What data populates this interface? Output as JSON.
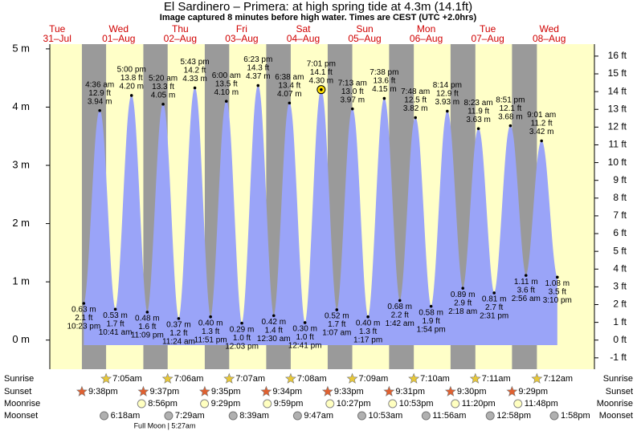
{
  "chart_data": {
    "type": "tide",
    "title": "El Sardinero – Primera: at high  spring tide at 4.3m (14.1ft)",
    "subtitle": "Image captured 8 minutes before high water. Times are CEST (UTC +2.0hrs)",
    "days": [
      "Tue",
      "Wed",
      "Thu",
      "Fri",
      "Sat",
      "Sun",
      "Mon",
      "Tue",
      "Wed"
    ],
    "dates": [
      "31–Jul",
      "01–Aug",
      "02–Aug",
      "03–Aug",
      "04–Aug",
      "05–Aug",
      "06–Aug",
      "07–Aug",
      "08–Aug"
    ],
    "color": "#9aa4f8",
    "events": {
      "times": [
        "10:23 pm",
        "4:36 am",
        "10:41 am",
        "5:00 pm",
        "11:09 pm",
        "5:20 am",
        "11:24 am",
        "5:43 pm",
        "11:51 pm",
        "6:00 am",
        "12:03 pm",
        "6:23 pm",
        "12:30 am",
        "6:38 am",
        "12:41 pm",
        "7:01 pm",
        "1:07 am",
        "7:13 am",
        "1:17 pm",
        "7:38 pm",
        "1:42 am",
        "7:48 am",
        "1:54 pm",
        "8:14 pm",
        "2:18 am",
        "8:23 am",
        "2:31 pm",
        "8:51 pm",
        "2:56 am",
        "9:01 am",
        "3:10 pm"
      ],
      "values": [
        0.63,
        3.94,
        0.53,
        4.2,
        0.48,
        4.05,
        0.37,
        4.33,
        0.4,
        4.1,
        0.29,
        4.37,
        0.42,
        4.07,
        0.3,
        4.3,
        0.52,
        3.97,
        0.4,
        4.15,
        0.68,
        3.82,
        0.58,
        3.93,
        0.89,
        3.63,
        0.81,
        3.68,
        1.11,
        3.42,
        1.08
      ],
      "value_labels": [
        "0.63 m",
        "3.94 m",
        "0.53 m",
        "4.20 m",
        "0.48 m",
        "4.05 m",
        "0.37 m",
        "4.33 m",
        "0.40 m",
        "4.10 m",
        "0.29 m",
        "4.37 m",
        "0.42 m",
        "4.07 m",
        "0.30 m",
        "4.30 m",
        "0.52 m",
        "3.97 m",
        "0.40 m",
        "4.15 m",
        "0.68 m",
        "3.82 m",
        "0.58 m",
        "3.93 m",
        "0.89 m",
        "3.63 m",
        "0.81 m",
        "3.68 m",
        "1.11 m",
        "3.42 m",
        "1.08 m"
      ],
      "ft_labels": [
        "2.1 ft",
        "12.9 ft",
        "1.7 ft",
        "13.8 ft",
        "1.6 ft",
        "13.3 ft",
        "1.2 ft",
        "14.2 ft",
        "1.3 ft",
        "13.5 ft",
        "1.0 ft",
        "14.3 ft",
        "1.4 ft",
        "13.4 ft",
        "1.0 ft",
        "14.1 ft",
        "1.7 ft",
        "13.0 ft",
        "1.3 ft",
        "13.6 ft",
        "2.2 ft",
        "12.5 ft",
        "1.9 ft",
        "12.9 ft",
        "2.9 ft",
        "11.9 ft",
        "2.7 ft",
        "12.1 ft",
        "3.6 ft",
        "11.2 ft",
        "3.5 ft"
      ]
    },
    "highlight": 15,
    "ylim": [
      -0.5,
      5.15
    ],
    "yticks": [
      {
        "value": 0,
        "label": "0 m"
      },
      {
        "value": 1,
        "label": "1 m"
      },
      {
        "value": 2,
        "label": "2 m"
      },
      {
        "value": 3,
        "label": "3 m"
      },
      {
        "value": 4,
        "label": "4 m"
      },
      {
        "value": 5,
        "label": "5 m"
      }
    ],
    "y2lim": [
      -1.64,
      16.9
    ],
    "y2ticks": [
      {
        "value": -1,
        "label": "-1 ft"
      },
      {
        "value": 0,
        "label": "0 ft"
      },
      {
        "value": 1,
        "label": "1 ft"
      },
      {
        "value": 2,
        "label": "2 ft"
      },
      {
        "value": 3,
        "label": "3 ft"
      },
      {
        "value": 4,
        "label": "4 ft"
      },
      {
        "value": 5,
        "label": "5 ft"
      },
      {
        "value": 6,
        "label": "6 ft"
      },
      {
        "value": 7,
        "label": "7 ft"
      },
      {
        "value": 8,
        "label": "8 ft"
      },
      {
        "value": 9,
        "label": "9 ft"
      },
      {
        "value": 10,
        "label": "10 ft"
      },
      {
        "value": 11,
        "label": "11 ft"
      },
      {
        "value": 12,
        "label": "12 ft"
      },
      {
        "value": 13,
        "label": "13 ft"
      },
      {
        "value": 14,
        "label": "14 ft"
      },
      {
        "value": 15,
        "label": "15 ft"
      },
      {
        "value": 16,
        "label": "16 ft"
      }
    ]
  },
  "astro": {
    "row_labels": [
      "Sunrise",
      "Sunset",
      "Moonrise",
      "Moonset"
    ],
    "sunrise": [
      "7:05am",
      "7:06am",
      "7:07am",
      "7:08am",
      "7:09am",
      "7:10am",
      "7:11am",
      "7:12am"
    ],
    "sunset": [
      "9:38pm",
      "9:37pm",
      "9:35pm",
      "9:34pm",
      "9:33pm",
      "9:31pm",
      "9:30pm",
      "9:29pm"
    ],
    "moonrise": [
      "8:56pm",
      "9:29pm",
      "9:59pm",
      "10:27pm",
      "10:53pm",
      "11:20pm",
      "11:48pm"
    ],
    "moonset": [
      "6:18am",
      "7:29am",
      "8:39am",
      "9:47am",
      "10:53am",
      "11:56am",
      "12:58pm",
      "1:58pm"
    ],
    "moon_phase": "Full Moon | 5:27am"
  }
}
